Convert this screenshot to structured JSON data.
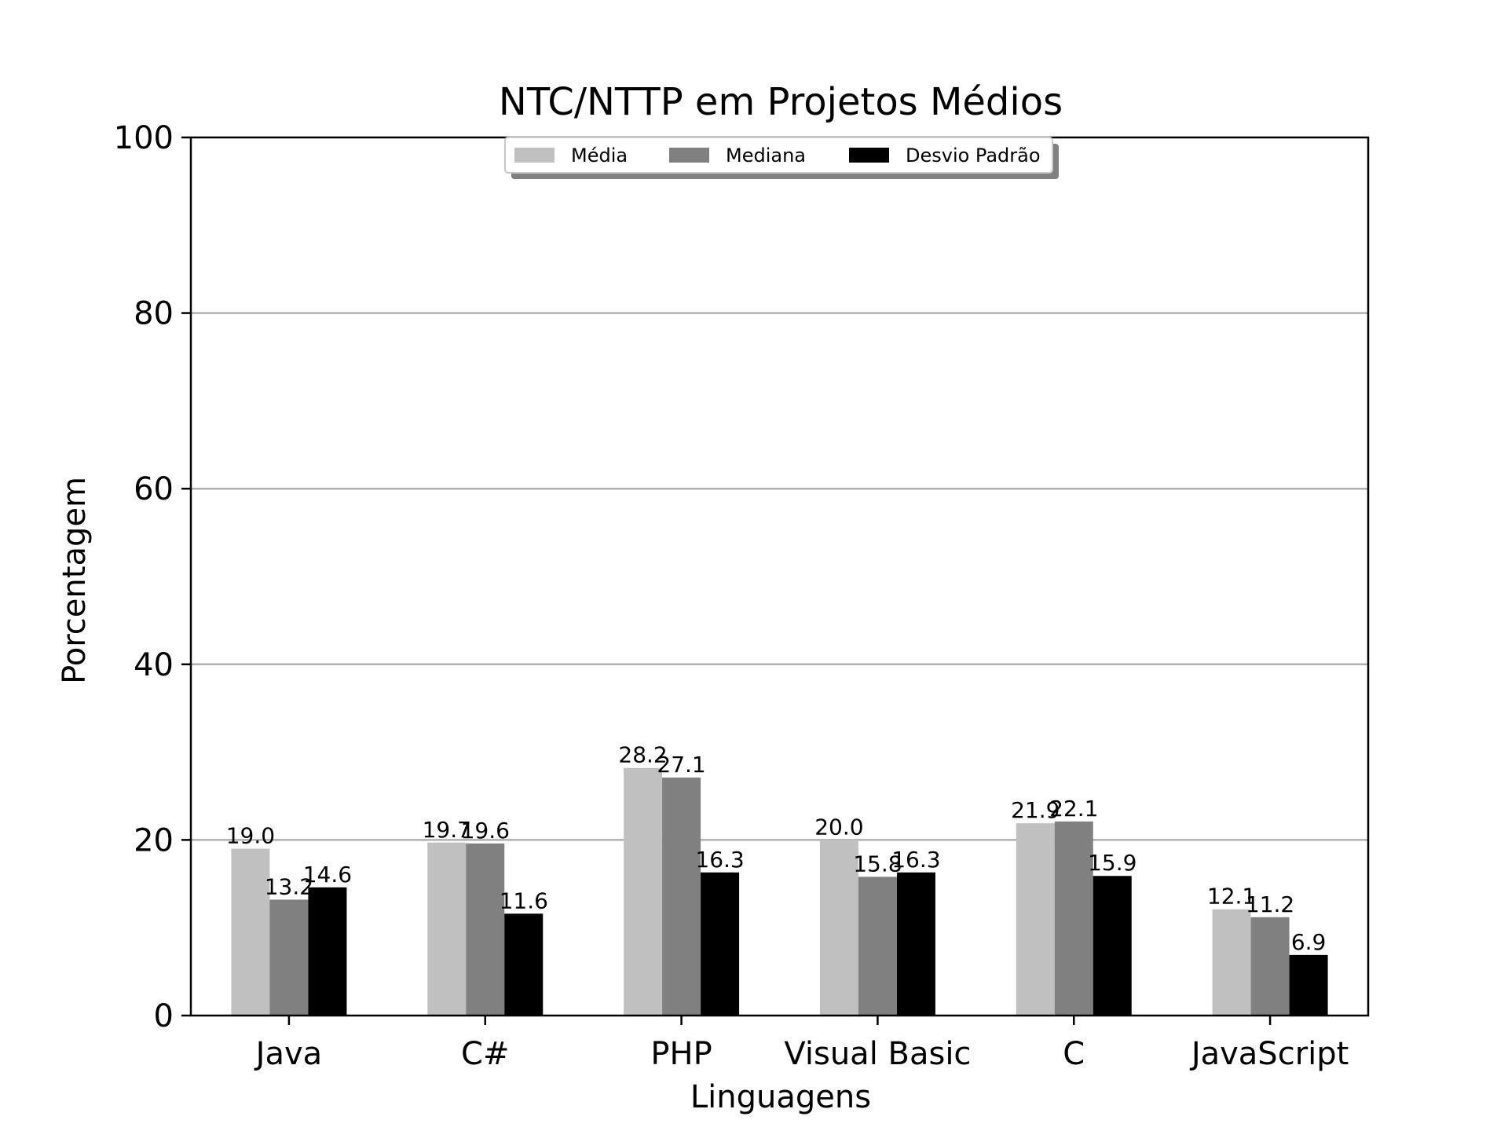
{
  "chart_data": {
    "type": "bar",
    "title": "NTC/NTTP em Projetos Médios",
    "xlabel": "Linguagens",
    "ylabel": "Porcentagem",
    "ylim": [
      0,
      100
    ],
    "yticks": [
      0,
      20,
      40,
      60,
      80,
      100
    ],
    "ytick_labels": [
      "0",
      "20",
      "40",
      "60",
      "80",
      "100"
    ],
    "grid": "horizontal",
    "legend_position": "top-center",
    "categories": [
      "Java",
      "C#",
      "PHP",
      "Visual Basic",
      "C",
      "JavaScript"
    ],
    "series": [
      {
        "name": "Média",
        "color": "#c0c0c0",
        "values": [
          19.0,
          19.7,
          28.2,
          20.0,
          21.9,
          12.1
        ],
        "labels": [
          "19.0",
          "19.7",
          "28.2",
          "20.0",
          "21.9",
          "12.1"
        ]
      },
      {
        "name": "Mediana",
        "color": "#808080",
        "values": [
          13.2,
          19.6,
          27.1,
          15.8,
          22.1,
          11.2
        ],
        "labels": [
          "13.2",
          "19.6",
          "27.1",
          "15.8",
          "22.1",
          "11.2"
        ]
      },
      {
        "name": "Desvio Padrão",
        "color": "#000000",
        "values": [
          14.6,
          11.6,
          16.3,
          16.3,
          15.9,
          6.9
        ],
        "labels": [
          "14.6",
          "11.6",
          "16.3",
          "16.3",
          "15.9",
          "6.9"
        ]
      }
    ]
  }
}
